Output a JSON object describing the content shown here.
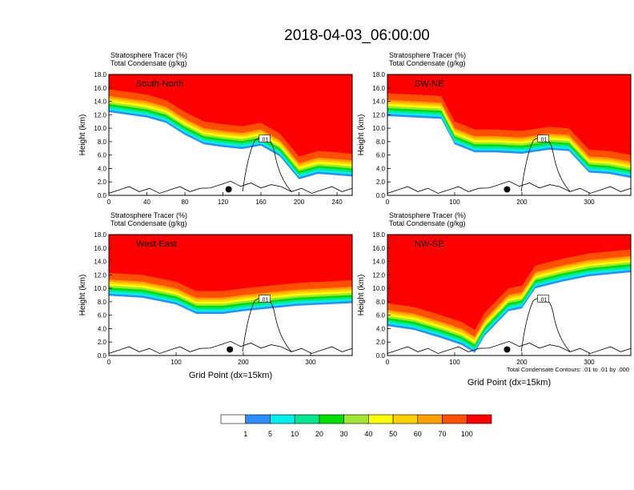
{
  "title": "2018-04-03_06:00:00",
  "footnote": "Total Condensate Contours: .01 to .01 by .000",
  "colorbar": {
    "labels": [
      "1",
      "5",
      "10",
      "20",
      "30",
      "40",
      "50",
      "60",
      "70",
      "100"
    ],
    "colors": [
      "#ffffff",
      "#2b8cff",
      "#00f0f0",
      "#00e890",
      "#00e000",
      "#a0e632",
      "#ffff00",
      "#ffd000",
      "#ffa000",
      "#ff5000",
      "#ff0000"
    ]
  },
  "chart_data": [
    {
      "type": "heatmap",
      "title": "South-North",
      "legend_line1": "Stratosphere Tracer   (%)",
      "legend_line2": "Total Condensate   (g/kg)",
      "ylabel": "Height (km)",
      "xlabel": "",
      "xlim": [
        0,
        256
      ],
      "ylim": [
        0,
        18
      ],
      "xticks": [
        "0",
        "40",
        "80",
        "120",
        "160",
        "200",
        "240"
      ],
      "yticks": [
        "0.0",
        "2.0",
        "4.0",
        "6.0",
        "8.0",
        "10.0",
        "12.0",
        "14.0",
        "16.0",
        "18.0"
      ],
      "contour_label": ".01",
      "tropopause_km": [
        [
          0,
          15.8
        ],
        [
          20,
          15.4
        ],
        [
          40,
          15.0
        ],
        [
          60,
          14.2
        ],
        [
          80,
          12.4
        ],
        [
          100,
          11.0
        ],
        [
          120,
          10.6
        ],
        [
          140,
          10.3
        ],
        [
          160,
          10.8
        ],
        [
          180,
          9.2
        ],
        [
          200,
          5.8
        ],
        [
          220,
          6.6
        ],
        [
          240,
          6.4
        ],
        [
          256,
          6.2
        ]
      ],
      "marker_x": 126
    },
    {
      "type": "heatmap",
      "title": "SW-NE",
      "legend_line1": "Stratosphere Tracer   (%)",
      "legend_line2": "Total Condensate   (g/kg)",
      "ylabel": "Height (km)",
      "xlabel": "",
      "xlim": [
        0,
        362
      ],
      "ylim": [
        0,
        18
      ],
      "xticks": [
        "0",
        "100",
        "200",
        "300"
      ],
      "yticks": [
        "0.0",
        "2.0",
        "4.0",
        "6.0",
        "8.0",
        "10.0",
        "12.0",
        "14.0",
        "16.0",
        "18.0"
      ],
      "contour_label": ".01",
      "tropopause_km": [
        [
          0,
          15.2
        ],
        [
          40,
          15.0
        ],
        [
          80,
          14.8
        ],
        [
          100,
          11.0
        ],
        [
          130,
          9.8
        ],
        [
          160,
          9.8
        ],
        [
          200,
          9.6
        ],
        [
          240,
          10.2
        ],
        [
          270,
          10.0
        ],
        [
          300,
          6.8
        ],
        [
          330,
          6.6
        ],
        [
          362,
          6.0
        ]
      ],
      "marker_x": 178
    },
    {
      "type": "heatmap",
      "title": "West-East",
      "legend_line1": "Stratosphere Tracer   (%)",
      "legend_line2": "Total Condensate   (g/kg)",
      "ylabel": "Height (km)",
      "xlabel": "Grid Point (dx=15km)",
      "xlim": [
        0,
        362
      ],
      "ylim": [
        0,
        18
      ],
      "xticks": [
        "0",
        "100",
        "200",
        "300"
      ],
      "yticks": [
        "0.0",
        "2.0",
        "4.0",
        "6.0",
        "8.0",
        "10.0",
        "12.0",
        "14.0",
        "16.0",
        "18.0"
      ],
      "contour_label": ".01",
      "tropopause_km": [
        [
          0,
          12.3
        ],
        [
          50,
          12.0
        ],
        [
          100,
          11.0
        ],
        [
          130,
          9.6
        ],
        [
          170,
          9.6
        ],
        [
          200,
          10.0
        ],
        [
          240,
          10.4
        ],
        [
          280,
          10.8
        ],
        [
          320,
          11.0
        ],
        [
          362,
          11.2
        ]
      ],
      "marker_x": 180
    },
    {
      "type": "heatmap",
      "title": "NW-SE",
      "legend_line1": "Stratosphere Tracer   (%)",
      "legend_line2": "Total Condensate   (g/kg)",
      "ylabel": "Height (km)",
      "xlabel": "Grid Point (dx=15km)",
      "xlim": [
        0,
        362
      ],
      "ylim": [
        0,
        18
      ],
      "xticks": [
        "0",
        "100",
        "200",
        "300"
      ],
      "yticks": [
        "0.0",
        "2.0",
        "4.0",
        "6.0",
        "8.0",
        "10.0",
        "12.0",
        "14.0",
        "16.0",
        "18.0"
      ],
      "contour_label": ".01",
      "tropopause_km": [
        [
          0,
          7.8
        ],
        [
          40,
          7.2
        ],
        [
          80,
          6.0
        ],
        [
          110,
          5.0
        ],
        [
          130,
          3.8
        ],
        [
          145,
          6.4
        ],
        [
          180,
          10.0
        ],
        [
          200,
          10.4
        ],
        [
          220,
          13.4
        ],
        [
          260,
          14.4
        ],
        [
          300,
          15.2
        ],
        [
          362,
          15.8
        ]
      ],
      "marker_x": 178
    }
  ]
}
